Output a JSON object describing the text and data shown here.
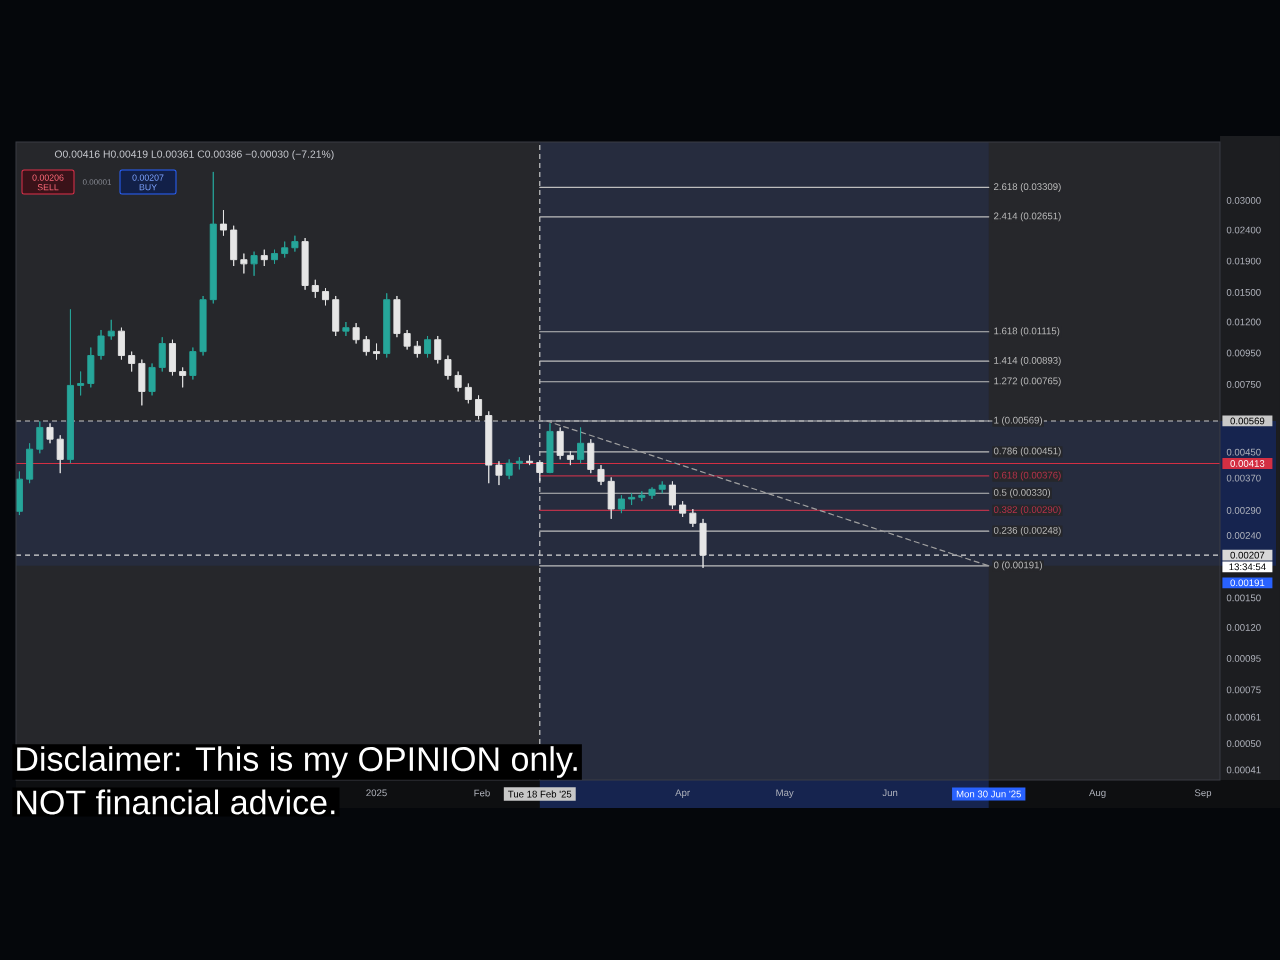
{
  "chart_data": {
    "type": "candlestick",
    "annotations": [
      "O0.00416 H0.00419 L0.00361 C0.00386 −0.00030 (−7.21%)",
      "0.00206",
      "SELL",
      "0.00001",
      "0.00207",
      "BUY",
      "13:34:54",
      "Disclaimer: This is my OPINION only.",
      "NOT financial advice."
    ],
    "x": [
      "2024-09-18",
      "2024-09-21",
      "2024-09-24",
      "2024-09-27",
      "2024-09-30",
      "2024-10-03",
      "2024-10-06",
      "2024-10-09",
      "2024-10-12",
      "2024-10-15",
      "2024-10-18",
      "2024-10-21",
      "2024-10-24",
      "2024-10-27",
      "2024-10-30",
      "2024-11-02",
      "2024-11-05",
      "2024-11-08",
      "2024-11-11",
      "2024-11-14",
      "2024-11-17",
      "2024-11-20",
      "2024-11-23",
      "2024-11-26",
      "2024-11-29",
      "2024-12-02",
      "2024-12-05",
      "2024-12-08",
      "2024-12-11",
      "2024-12-14",
      "2024-12-17",
      "2024-12-20",
      "2024-12-23",
      "2024-12-26",
      "2024-12-29",
      "2025-01-01",
      "2025-01-04",
      "2025-01-07",
      "2025-01-10",
      "2025-01-13",
      "2025-01-16",
      "2025-01-19",
      "2025-01-22",
      "2025-01-25",
      "2025-01-28",
      "2025-01-31",
      "2025-02-03",
      "2025-02-06",
      "2025-02-09",
      "2025-02-12",
      "2025-02-15",
      "2025-02-18",
      "2025-02-21",
      "2025-02-24",
      "2025-02-27",
      "2025-03-02",
      "2025-03-05",
      "2025-03-08",
      "2025-03-11",
      "2025-03-14",
      "2025-03-17",
      "2025-03-20",
      "2025-03-23",
      "2025-03-26",
      "2025-03-29",
      "2025-04-01",
      "2025-04-04",
      "2025-04-07"
    ],
    "ohlc": [
      [
        0.00288,
        0.00389,
        0.0028,
        0.00367
      ],
      [
        0.00367,
        0.00481,
        0.00356,
        0.0046
      ],
      [
        0.0046,
        0.00567,
        0.00446,
        0.00542
      ],
      [
        0.00542,
        0.00559,
        0.00481,
        0.00496
      ],
      [
        0.00496,
        0.00511,
        0.00384,
        0.00426
      ],
      [
        0.00426,
        0.0132,
        0.00414,
        0.00744
      ],
      [
        0.00744,
        0.00826,
        0.0069,
        0.00755
      ],
      [
        0.00755,
        0.0099,
        0.00733,
        0.00932
      ],
      [
        0.00932,
        0.0113,
        0.00904,
        0.0108
      ],
      [
        0.0108,
        0.0122,
        0.0105,
        0.0112
      ],
      [
        0.0112,
        0.0115,
        0.00904,
        0.00932
      ],
      [
        0.00932,
        0.0096,
        0.00826,
        0.00878
      ],
      [
        0.00878,
        0.00904,
        0.0064,
        0.00711
      ],
      [
        0.00711,
        0.00878,
        0.0069,
        0.00852
      ],
      [
        0.00852,
        0.0107,
        0.00826,
        0.0102
      ],
      [
        0.0102,
        0.0105,
        0.00802,
        0.00826
      ],
      [
        0.00826,
        0.00852,
        0.00733,
        0.00802
      ],
      [
        0.00802,
        0.0099,
        0.00778,
        0.0096
      ],
      [
        0.0096,
        0.0146,
        0.00932,
        0.0142
      ],
      [
        0.0142,
        0.0372,
        0.0138,
        0.0251
      ],
      [
        0.0251,
        0.0279,
        0.023,
        0.024
      ],
      [
        0.024,
        0.0248,
        0.0183,
        0.0192
      ],
      [
        0.0192,
        0.0201,
        0.0173,
        0.0186
      ],
      [
        0.0186,
        0.0204,
        0.017,
        0.0198
      ],
      [
        0.0198,
        0.0207,
        0.0183,
        0.0192
      ],
      [
        0.0192,
        0.0207,
        0.0186,
        0.0201
      ],
      [
        0.0201,
        0.022,
        0.0195,
        0.021
      ],
      [
        0.021,
        0.023,
        0.0204,
        0.022
      ],
      [
        0.022,
        0.0226,
        0.0153,
        0.0158
      ],
      [
        0.0158,
        0.0165,
        0.0144,
        0.0151
      ],
      [
        0.0151,
        0.0155,
        0.0136,
        0.0142
      ],
      [
        0.0142,
        0.0146,
        0.0108,
        0.0112
      ],
      [
        0.0112,
        0.012,
        0.0108,
        0.0115
      ],
      [
        0.0115,
        0.0119,
        0.0102,
        0.0105
      ],
      [
        0.0105,
        0.0108,
        0.00932,
        0.0096
      ],
      [
        0.0096,
        0.0102,
        0.00904,
        0.00946
      ],
      [
        0.00946,
        0.0149,
        0.00918,
        0.0142
      ],
      [
        0.0142,
        0.0146,
        0.0107,
        0.011
      ],
      [
        0.011,
        0.0113,
        0.00975,
        0.01
      ],
      [
        0.01,
        0.0104,
        0.00918,
        0.00946
      ],
      [
        0.00946,
        0.0108,
        0.00918,
        0.0105
      ],
      [
        0.0105,
        0.0108,
        0.00878,
        0.00904
      ],
      [
        0.00904,
        0.00932,
        0.00778,
        0.00802
      ],
      [
        0.00802,
        0.00826,
        0.00711,
        0.00733
      ],
      [
        0.00733,
        0.00755,
        0.0065,
        0.00669
      ],
      [
        0.00669,
        0.0069,
        0.00576,
        0.00593
      ],
      [
        0.00593,
        0.00612,
        0.00356,
        0.00408
      ],
      [
        0.00408,
        0.0042,
        0.00351,
        0.00378
      ],
      [
        0.00378,
        0.00426,
        0.00367,
        0.00414
      ],
      [
        0.00414,
        0.00433,
        0.00395,
        0.0042
      ],
      [
        0.0042,
        0.00439,
        0.00408,
        0.00416
      ],
      [
        0.00416,
        0.00419,
        0.00361,
        0.00386
      ],
      [
        0.00386,
        0.00559,
        0.00384,
        0.00526
      ],
      [
        0.00526,
        0.00542,
        0.00426,
        0.00439
      ],
      [
        0.00439,
        0.00453,
        0.00408,
        0.00426
      ],
      [
        0.00426,
        0.00542,
        0.00414,
        0.00481
      ],
      [
        0.00481,
        0.00496,
        0.00384,
        0.00395
      ],
      [
        0.00395,
        0.00408,
        0.00351,
        0.00361
      ],
      [
        0.00361,
        0.00372,
        0.00272,
        0.00293
      ],
      [
        0.00293,
        0.00325,
        0.00284,
        0.00316
      ],
      [
        0.00316,
        0.0033,
        0.00302,
        0.0032
      ],
      [
        0.0032,
        0.00335,
        0.00311,
        0.00325
      ],
      [
        0.00325,
        0.00345,
        0.00316,
        0.0034
      ],
      [
        0.0034,
        0.00361,
        0.0033,
        0.00351
      ],
      [
        0.00351,
        0.00361,
        0.00293,
        0.00302
      ],
      [
        0.00302,
        0.00311,
        0.00276,
        0.00284
      ],
      [
        0.00284,
        0.00293,
        0.00256,
        0.00263
      ],
      [
        0.00263,
        0.00272,
        0.00188,
        0.00207
      ]
    ],
    "colors": [
      "#26a69a",
      "#26a69a",
      "#26a69a",
      "#e6e6e6",
      "#e6e6e6",
      "#26a69a",
      "#26a69a",
      "#26a69a",
      "#26a69a",
      "#26a69a",
      "#e6e6e6",
      "#e6e6e6",
      "#e6e6e6",
      "#26a69a",
      "#26a69a",
      "#e6e6e6",
      "#e6e6e6",
      "#26a69a",
      "#26a69a",
      "#26a69a",
      "#e6e6e6",
      "#e6e6e6",
      "#e6e6e6",
      "#26a69a",
      "#e6e6e6",
      "#26a69a",
      "#26a69a",
      "#26a69a",
      "#e6e6e6",
      "#e6e6e6",
      "#e6e6e6",
      "#e6e6e6",
      "#26a69a",
      "#e6e6e6",
      "#e6e6e6",
      "#e6e6e6",
      "#26a69a",
      "#e6e6e6",
      "#e6e6e6",
      "#e6e6e6",
      "#26a69a",
      "#e6e6e6",
      "#e6e6e6",
      "#e6e6e6",
      "#e6e6e6",
      "#e6e6e6",
      "#e6e6e6",
      "#e6e6e6",
      "#26a69a",
      "#26a69a",
      "#e6e6e6",
      "#e6e6e6",
      "#26a69a",
      "#e6e6e6",
      "#e6e6e6",
      "#26a69a",
      "#e6e6e6",
      "#e6e6e6",
      "#e6e6e6",
      "#26a69a",
      "#26a69a",
      "#26a69a",
      "#26a69a",
      "#26a69a",
      "#e6e6e6",
      "#e6e6e6",
      "#e6e6e6",
      "#e6e6e6"
    ],
    "xlim": [
      "2024-09-17",
      "2025-09-06"
    ],
    "ylim": [
      0.00038,
      0.0466
    ],
    "log": true,
    "xticks": [
      {
        "value": "2025-01-01",
        "label": "2025"
      },
      {
        "value": "2025-02-01",
        "label": "Feb"
      },
      {
        "value": "2025-04-01",
        "label": "Apr"
      },
      {
        "value": "2025-05-01",
        "label": "May"
      },
      {
        "value": "2025-06-01",
        "label": "Jun"
      },
      {
        "value": "2025-08-01",
        "label": "Aug"
      },
      {
        "value": "2025-09-01",
        "label": "Sep"
      }
    ],
    "yticks": [
      {
        "value": 0.03,
        "label": "0.03000"
      },
      {
        "value": 0.024,
        "label": "0.02400"
      },
      {
        "value": 0.019,
        "label": "0.01900"
      },
      {
        "value": 0.015,
        "label": "0.01500"
      },
      {
        "value": 0.012,
        "label": "0.01200"
      },
      {
        "value": 0.0095,
        "label": "0.00950"
      },
      {
        "value": 0.0075,
        "label": "0.00750"
      },
      {
        "value": 0.0045,
        "label": "0.00450"
      },
      {
        "value": 0.0037,
        "label": "0.00370"
      },
      {
        "value": 0.0029,
        "label": "0.00290"
      },
      {
        "value": 0.0024,
        "label": "0.00240"
      },
      {
        "value": 0.0015,
        "label": "0.00150"
      },
      {
        "value": 0.0012,
        "label": "0.00120"
      },
      {
        "value": 0.00095,
        "label": "0.00095"
      },
      {
        "value": 0.00075,
        "label": "0.00075"
      },
      {
        "value": 0.00061,
        "label": "0.00061"
      },
      {
        "value": 0.0005,
        "label": "0.00050"
      },
      {
        "value": 0.00041,
        "label": "0.00041"
      }
    ],
    "series": [
      {
        "type": "line",
        "name": "2.618 (0.03309)",
        "color": "#bdbdbd",
        "x": [
          "2025-02-18",
          "2025-06-30"
        ],
        "values": [
          0.03309,
          0.03309
        ]
      },
      {
        "type": "line",
        "name": "2.414 (0.02651)",
        "color": "#bdbdbd",
        "x": [
          "2025-02-18",
          "2025-06-30"
        ],
        "values": [
          0.02651,
          0.02651
        ]
      },
      {
        "type": "line",
        "name": "1.618 (0.01115)",
        "color": "#bdbdbd",
        "x": [
          "2025-02-18",
          "2025-06-30"
        ],
        "values": [
          0.01115,
          0.01115
        ]
      },
      {
        "type": "line",
        "name": "1.414 (0.00893)",
        "color": "#bdbdbd",
        "x": [
          "2025-02-18",
          "2025-06-30"
        ],
        "values": [
          0.00893,
          0.00893
        ]
      },
      {
        "type": "line",
        "name": "1.272 (0.00765)",
        "color": "#bdbdbd",
        "x": [
          "2025-02-18",
          "2025-06-30"
        ],
        "values": [
          0.00765,
          0.00765
        ]
      },
      {
        "type": "line",
        "name": "1 (0.00569)",
        "color": "#bdbdbd",
        "x": [
          "2025-02-18",
          "2025-06-30"
        ],
        "values": [
          0.00569,
          0.00569
        ]
      },
      {
        "type": "line",
        "name": "0.786 (0.00451)",
        "color": "#bdbdbd",
        "x": [
          "2025-02-18",
          "2025-06-30"
        ],
        "values": [
          0.00451,
          0.00451
        ]
      },
      {
        "type": "line",
        "name": "0.618 (0.00376)",
        "color": "#b8324a",
        "x": [
          "2025-02-18",
          "2025-06-30"
        ],
        "values": [
          0.00376,
          0.00376
        ]
      },
      {
        "type": "line",
        "name": "0.5 (0.00330)",
        "color": "#bdbdbd",
        "x": [
          "2025-02-18",
          "2025-06-30"
        ],
        "values": [
          0.0033,
          0.0033
        ]
      },
      {
        "type": "line",
        "name": "0.382 (0.00290)",
        "color": "#b8324a",
        "x": [
          "2025-02-18",
          "2025-06-30"
        ],
        "values": [
          0.0029,
          0.0029
        ]
      },
      {
        "type": "line",
        "name": "0.236 (0.00248)",
        "color": "#bdbdbd",
        "x": [
          "2025-02-18",
          "2025-06-30"
        ],
        "values": [
          0.00248,
          0.00248
        ]
      },
      {
        "type": "line",
        "name": "0 (0.00191)",
        "color": "#bdbdbd",
        "x": [
          "2025-02-18",
          "2025-06-30"
        ],
        "values": [
          0.00191,
          0.00191
        ]
      },
      {
        "type": "line",
        "color": "#a0a0a0",
        "line_style": "dashed",
        "x": [
          "2025-02-20",
          "2025-06-30"
        ],
        "values": [
          0.00569,
          0.00191
        ]
      }
    ],
    "ref_lines": [
      {
        "axis": "y",
        "value": 0.00569,
        "label": "0.00569",
        "color": "#c8c8c8",
        "line_style": "dashed"
      },
      {
        "axis": "y",
        "value": 0.00413,
        "label": "0.00413",
        "color": "#d32f43"
      },
      {
        "axis": "y",
        "value": 0.00207,
        "label": "0.00207",
        "color": "#d8d8d8",
        "line_style": "dashed"
      },
      {
        "axis": "x",
        "value": "2025-02-18",
        "label": "Tue 18 Feb '25",
        "color": "#c8c8c8",
        "line_style": "dashed"
      }
    ],
    "bands": [
      {
        "axis": "x",
        "from": "2025-02-18",
        "to": "2025-06-30",
        "label": "Mon 30 Jun '25",
        "color": "#262c3e"
      },
      {
        "axis": "y",
        "from": 0.00569,
        "to": 0.00191,
        "label": "0.00191",
        "color": "#262c3e"
      }
    ]
  }
}
